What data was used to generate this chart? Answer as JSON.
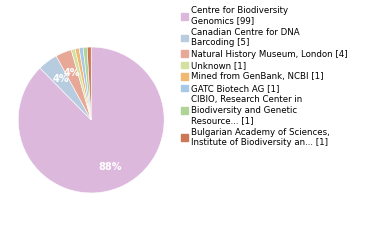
{
  "labels": [
    "Centre for Biodiversity\nGenomics [99]",
    "Canadian Centre for DNA\nBarcoding [5]",
    "Natural History Museum, London [4]",
    "Unknown [1]",
    "Mined from GenBank, NCBI [1]",
    "GATC Biotech AG [1]",
    "CIBIO, Research Center in\nBiodiversity and Genetic\nResource... [1]",
    "Bulgarian Academy of Sciences,\nInstitute of Biodiversity an... [1]"
  ],
  "values": [
    99,
    5,
    4,
    1,
    1,
    1,
    1,
    1
  ],
  "colors": [
    "#ddb8dd",
    "#b8cce0",
    "#e8a898",
    "#d4e0a0",
    "#f0b870",
    "#a8c8e8",
    "#b0d498",
    "#cc7755"
  ],
  "autopct_fontsize": 7,
  "legend_fontsize": 6.2,
  "background_color": "#ffffff"
}
